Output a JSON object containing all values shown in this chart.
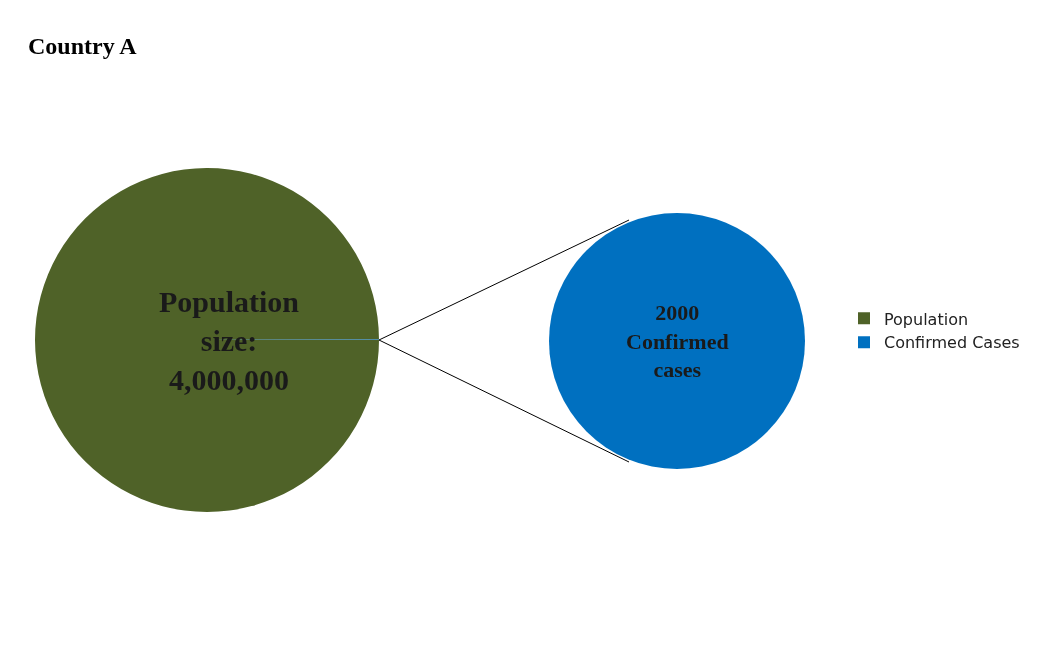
{
  "chart_data": {
    "type": "pie",
    "title": "Country A",
    "categories": [
      "Population",
      "Confirmed Cases"
    ],
    "values": [
      4000000,
      2000
    ],
    "colors": [
      "#4f6228",
      "#0070c0"
    ],
    "value_labels": [
      "Population size: 4,000,000",
      "2000 Confirmed cases"
    ],
    "legend": "right"
  }
}
